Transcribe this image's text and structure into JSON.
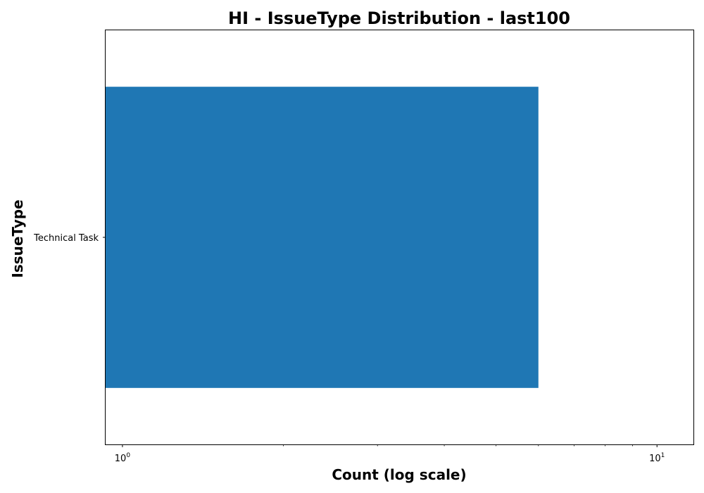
{
  "chart_data": {
    "type": "bar",
    "orientation": "horizontal",
    "title": "HI - IssueType Distribution - last100",
    "xlabel": "Count (log scale)",
    "ylabel": "IssueType",
    "xscale": "log",
    "xlim": [
      0.93,
      11.7
    ],
    "xticks": [
      {
        "value": 1,
        "base": "10",
        "exp": "0"
      },
      {
        "value": 10,
        "base": "10",
        "exp": "1"
      }
    ],
    "categories": [
      "Technical Task"
    ],
    "values": [
      6
    ],
    "bar_color": "#1f77b4",
    "grid": false,
    "legend": "none"
  }
}
